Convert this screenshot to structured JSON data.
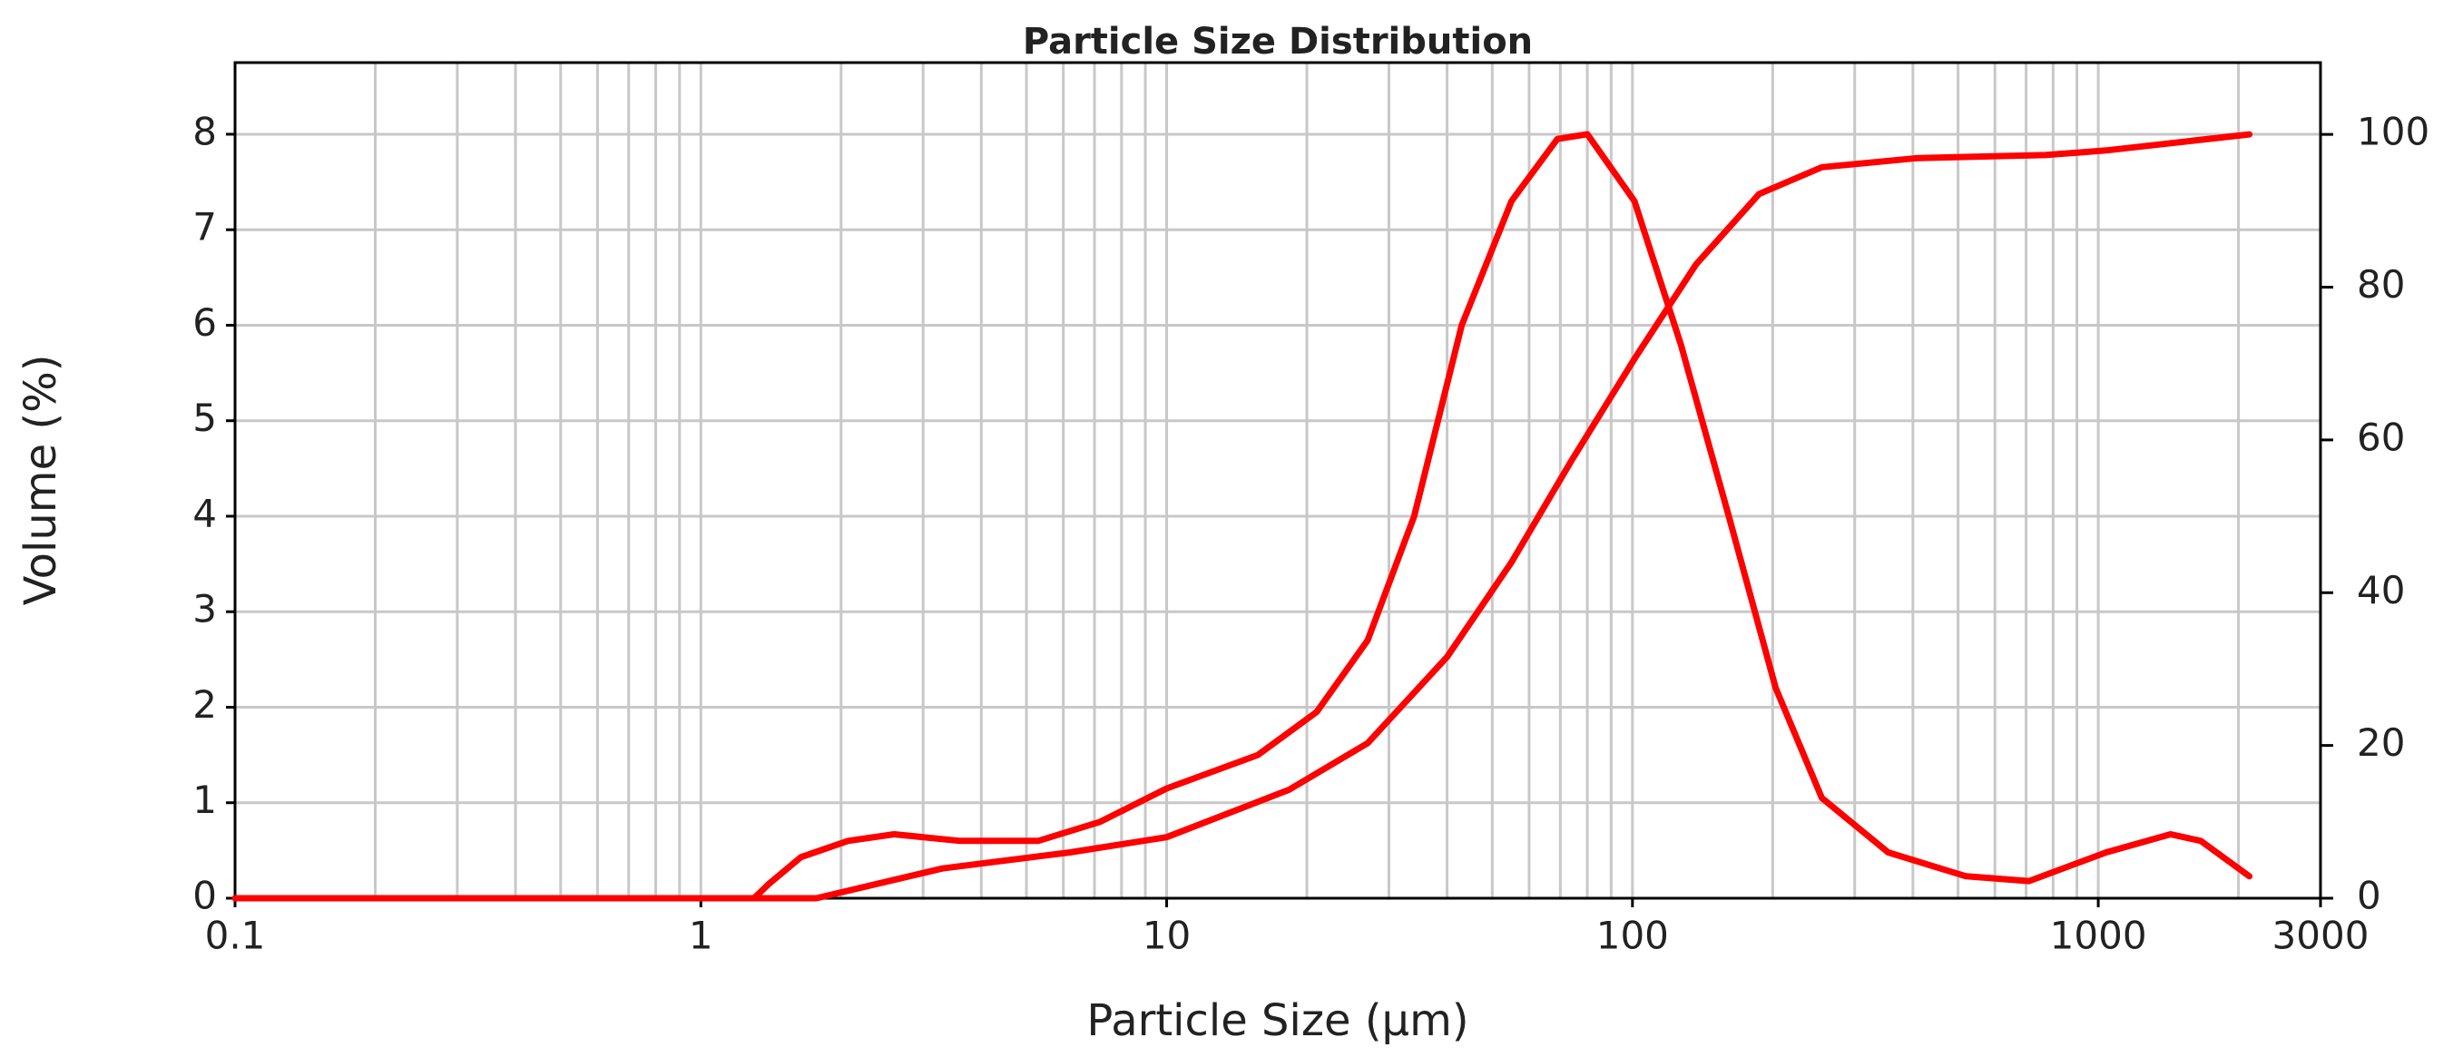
{
  "chart_data": {
    "type": "line",
    "title": "Particle Size Distribution",
    "x_label": "Particle Size (μm)",
    "y_label": "Volume (%)",
    "x_log": true,
    "grid": true,
    "x_minor_grid": true,
    "xlim": [
      0.1,
      3000
    ],
    "xticks": [
      0.1,
      1,
      10,
      100,
      1000,
      3000
    ],
    "ylim": [
      0,
      8.75
    ],
    "yticks": [
      0,
      1,
      2,
      3,
      4,
      5,
      6,
      7,
      8
    ],
    "y2lim": [
      0,
      109.4
    ],
    "y2ticks": [
      0,
      20,
      40,
      60,
      80,
      100
    ],
    "series": [
      {
        "color": "#ff0000",
        "x": [
          0.1,
          1.3,
          1.4,
          1.64,
          2.07,
          2.6,
          3.6,
          5.3,
          7.2,
          10,
          15.7,
          21,
          27,
          34,
          43,
          55,
          69,
          80,
          101,
          127,
          161,
          203,
          255,
          354,
          520,
          710,
          1040,
          1430,
          1660,
          2110
        ],
        "values": [
          0,
          0,
          0.15,
          0.43,
          0.6,
          0.67,
          0.6,
          0.6,
          0.8,
          1.15,
          1.5,
          1.95,
          2.7,
          4.0,
          6.0,
          7.3,
          7.95,
          8.0,
          7.3,
          5.8,
          4.0,
          2.2,
          1.05,
          0.48,
          0.23,
          0.18,
          0.48,
          0.67,
          0.6,
          0.23
        ]
      },
      {
        "color": "#ff0000",
        "axis": "y2",
        "x": [
          0.1,
          1.77,
          3.3,
          6.2,
          10,
          18.3,
          27,
          40,
          55,
          74,
          101,
          137,
          187,
          255,
          410,
          770,
          1040,
          2110
        ],
        "values": [
          0,
          0,
          3.9,
          6,
          8,
          14.2,
          20.3,
          31.6,
          44,
          57.3,
          70.6,
          83,
          92.2,
          95.7,
          96.9,
          97.3,
          97.9,
          100
        ]
      }
    ]
  }
}
